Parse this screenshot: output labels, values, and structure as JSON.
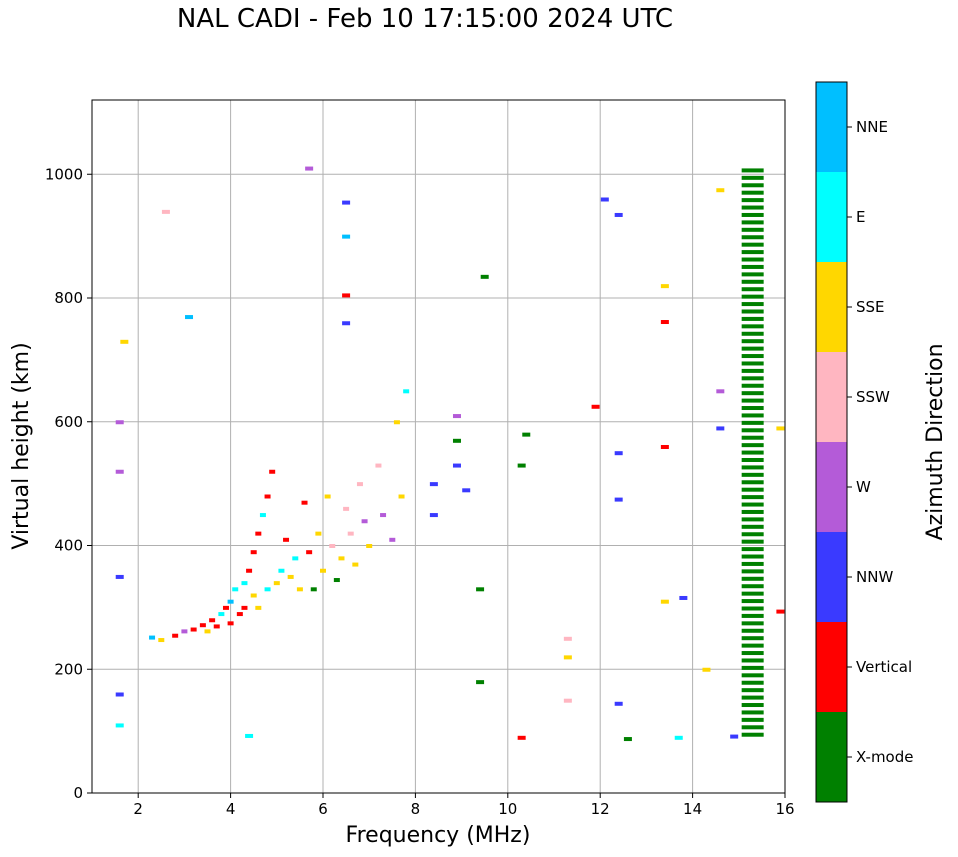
{
  "chart_data": {
    "type": "scatter",
    "title": "NAL CADI - Feb 10 17:15:00 2024 UTC",
    "xlabel": "Frequency (MHz)",
    "ylabel": "Virtual height (km)",
    "xlim": [
      1,
      16
    ],
    "ylim": [
      0,
      1120
    ],
    "xticks": [
      2,
      4,
      6,
      8,
      10,
      12,
      14,
      16
    ],
    "yticks": [
      0,
      200,
      400,
      600,
      800,
      1000
    ],
    "grid": true,
    "colorbar": {
      "label": "Azimuth Direction",
      "categories": [
        {
          "name": "X-mode",
          "color": "#008000"
        },
        {
          "name": "Vertical",
          "color": "#ff0000"
        },
        {
          "name": "NNW",
          "color": "#3a3aff"
        },
        {
          "name": "W",
          "color": "#b45bd8"
        },
        {
          "name": "SSW",
          "color": "#ffb6c1"
        },
        {
          "name": "SSE",
          "color": "#ffd700"
        },
        {
          "name": "E",
          "color": "#00ffff"
        },
        {
          "name": "NNE",
          "color": "#00bfff"
        }
      ]
    },
    "trace_samples": [
      {
        "f": 2.3,
        "h": 252,
        "c": "NNE"
      },
      {
        "f": 2.5,
        "h": 248,
        "c": "SSE"
      },
      {
        "f": 2.8,
        "h": 255,
        "c": "Vertical"
      },
      {
        "f": 3.0,
        "h": 262,
        "c": "W"
      },
      {
        "f": 3.2,
        "h": 265,
        "c": "Vertical"
      },
      {
        "f": 3.4,
        "h": 272,
        "c": "Vertical"
      },
      {
        "f": 3.5,
        "h": 262,
        "c": "SSE"
      },
      {
        "f": 3.6,
        "h": 280,
        "c": "Vertical"
      },
      {
        "f": 3.7,
        "h": 270,
        "c": "Vertical"
      },
      {
        "f": 3.8,
        "h": 290,
        "c": "E"
      },
      {
        "f": 3.9,
        "h": 300,
        "c": "Vertical"
      },
      {
        "f": 4.0,
        "h": 310,
        "c": "NNE"
      },
      {
        "f": 4.0,
        "h": 275,
        "c": "Vertical"
      },
      {
        "f": 4.1,
        "h": 330,
        "c": "E"
      },
      {
        "f": 4.2,
        "h": 290,
        "c": "Vertical"
      },
      {
        "f": 4.3,
        "h": 340,
        "c": "E"
      },
      {
        "f": 4.3,
        "h": 300,
        "c": "Vertical"
      },
      {
        "f": 4.4,
        "h": 360,
        "c": "Vertical"
      },
      {
        "f": 4.5,
        "h": 390,
        "c": "Vertical"
      },
      {
        "f": 4.5,
        "h": 320,
        "c": "SSE"
      },
      {
        "f": 4.6,
        "h": 420,
        "c": "Vertical"
      },
      {
        "f": 4.6,
        "h": 300,
        "c": "SSE"
      },
      {
        "f": 4.7,
        "h": 450,
        "c": "E"
      },
      {
        "f": 4.8,
        "h": 480,
        "c": "Vertical"
      },
      {
        "f": 4.8,
        "h": 330,
        "c": "E"
      },
      {
        "f": 4.9,
        "h": 520,
        "c": "Vertical"
      },
      {
        "f": 5.0,
        "h": 340,
        "c": "SSE"
      },
      {
        "f": 5.1,
        "h": 360,
        "c": "E"
      },
      {
        "f": 5.2,
        "h": 410,
        "c": "Vertical"
      },
      {
        "f": 5.3,
        "h": 350,
        "c": "SSE"
      },
      {
        "f": 5.4,
        "h": 380,
        "c": "E"
      },
      {
        "f": 5.5,
        "h": 330,
        "c": "SSE"
      },
      {
        "f": 5.6,
        "h": 470,
        "c": "Vertical"
      },
      {
        "f": 5.7,
        "h": 390,
        "c": "Vertical"
      },
      {
        "f": 5.8,
        "h": 330,
        "c": "X-mode"
      },
      {
        "f": 5.9,
        "h": 420,
        "c": "SSE"
      },
      {
        "f": 6.0,
        "h": 360,
        "c": "SSE"
      },
      {
        "f": 6.1,
        "h": 480,
        "c": "SSE"
      },
      {
        "f": 6.2,
        "h": 400,
        "c": "SSW"
      },
      {
        "f": 6.3,
        "h": 345,
        "c": "X-mode"
      },
      {
        "f": 6.4,
        "h": 380,
        "c": "SSE"
      },
      {
        "f": 6.5,
        "h": 460,
        "c": "SSW"
      },
      {
        "f": 6.6,
        "h": 420,
        "c": "SSW"
      },
      {
        "f": 6.7,
        "h": 370,
        "c": "SSE"
      },
      {
        "f": 6.8,
        "h": 500,
        "c": "SSW"
      },
      {
        "f": 6.9,
        "h": 440,
        "c": "W"
      },
      {
        "f": 7.0,
        "h": 400,
        "c": "SSE"
      },
      {
        "f": 7.2,
        "h": 530,
        "c": "SSW"
      },
      {
        "f": 7.3,
        "h": 450,
        "c": "W"
      },
      {
        "f": 7.5,
        "h": 410,
        "c": "W"
      },
      {
        "f": 7.6,
        "h": 600,
        "c": "SSE"
      },
      {
        "f": 7.7,
        "h": 480,
        "c": "SSE"
      },
      {
        "f": 7.8,
        "h": 650,
        "c": "E"
      }
    ],
    "scatter_samples": [
      {
        "f": 1.6,
        "h": 600,
        "c": "W"
      },
      {
        "f": 1.6,
        "h": 520,
        "c": "W"
      },
      {
        "f": 1.6,
        "h": 350,
        "c": "NNW"
      },
      {
        "f": 1.6,
        "h": 160,
        "c": "NNW"
      },
      {
        "f": 1.6,
        "h": 110,
        "c": "E"
      },
      {
        "f": 1.7,
        "h": 730,
        "c": "SSE"
      },
      {
        "f": 2.6,
        "h": 940,
        "c": "SSW"
      },
      {
        "f": 3.1,
        "h": 770,
        "c": "NNE"
      },
      {
        "f": 4.4,
        "h": 93,
        "c": "E"
      },
      {
        "f": 5.7,
        "h": 1010,
        "c": "W"
      },
      {
        "f": 6.5,
        "h": 955,
        "c": "NNW"
      },
      {
        "f": 6.5,
        "h": 900,
        "c": "NNE"
      },
      {
        "f": 6.5,
        "h": 805,
        "c": "Vertical"
      },
      {
        "f": 6.5,
        "h": 760,
        "c": "NNW"
      },
      {
        "f": 8.4,
        "h": 500,
        "c": "NNW"
      },
      {
        "f": 8.4,
        "h": 450,
        "c": "NNW"
      },
      {
        "f": 8.9,
        "h": 610,
        "c": "W"
      },
      {
        "f": 8.9,
        "h": 570,
        "c": "X-mode"
      },
      {
        "f": 8.9,
        "h": 530,
        "c": "NNW"
      },
      {
        "f": 9.1,
        "h": 490,
        "c": "NNW"
      },
      {
        "f": 9.4,
        "h": 330,
        "c": "X-mode"
      },
      {
        "f": 9.4,
        "h": 180,
        "c": "X-mode"
      },
      {
        "f": 9.5,
        "h": 835,
        "c": "X-mode"
      },
      {
        "f": 10.4,
        "h": 580,
        "c": "X-mode"
      },
      {
        "f": 10.3,
        "h": 530,
        "c": "X-mode"
      },
      {
        "f": 10.3,
        "h": 90,
        "c": "Vertical"
      },
      {
        "f": 11.3,
        "h": 250,
        "c": "SSW"
      },
      {
        "f": 11.3,
        "h": 220,
        "c": "SSE"
      },
      {
        "f": 11.3,
        "h": 150,
        "c": "SSW"
      },
      {
        "f": 11.9,
        "h": 625,
        "c": "Vertical"
      },
      {
        "f": 12.1,
        "h": 960,
        "c": "NNW"
      },
      {
        "f": 12.4,
        "h": 935,
        "c": "NNW"
      },
      {
        "f": 12.4,
        "h": 550,
        "c": "NNW"
      },
      {
        "f": 12.4,
        "h": 475,
        "c": "NNW"
      },
      {
        "f": 12.4,
        "h": 145,
        "c": "NNW"
      },
      {
        "f": 12.6,
        "h": 88,
        "c": "X-mode"
      },
      {
        "f": 13.4,
        "h": 820,
        "c": "SSE"
      },
      {
        "f": 13.4,
        "h": 762,
        "c": "Vertical"
      },
      {
        "f": 13.4,
        "h": 560,
        "c": "Vertical"
      },
      {
        "f": 13.4,
        "h": 310,
        "c": "SSE"
      },
      {
        "f": 13.8,
        "h": 316,
        "c": "NNW"
      },
      {
        "f": 13.7,
        "h": 90,
        "c": "E"
      },
      {
        "f": 14.3,
        "h": 200,
        "c": "SSE"
      },
      {
        "f": 14.6,
        "h": 975,
        "c": "SSE"
      },
      {
        "f": 14.6,
        "h": 650,
        "c": "W"
      },
      {
        "f": 14.6,
        "h": 590,
        "c": "NNW"
      },
      {
        "f": 14.9,
        "h": 92,
        "c": "NNW"
      },
      {
        "f": 15.9,
        "h": 590,
        "c": "SSE"
      },
      {
        "f": 15.9,
        "h": 294,
        "c": "Vertical"
      }
    ],
    "xmode_column": {
      "f": 15.3,
      "h_start": 95,
      "h_end": 1015,
      "c": "X-mode"
    }
  }
}
